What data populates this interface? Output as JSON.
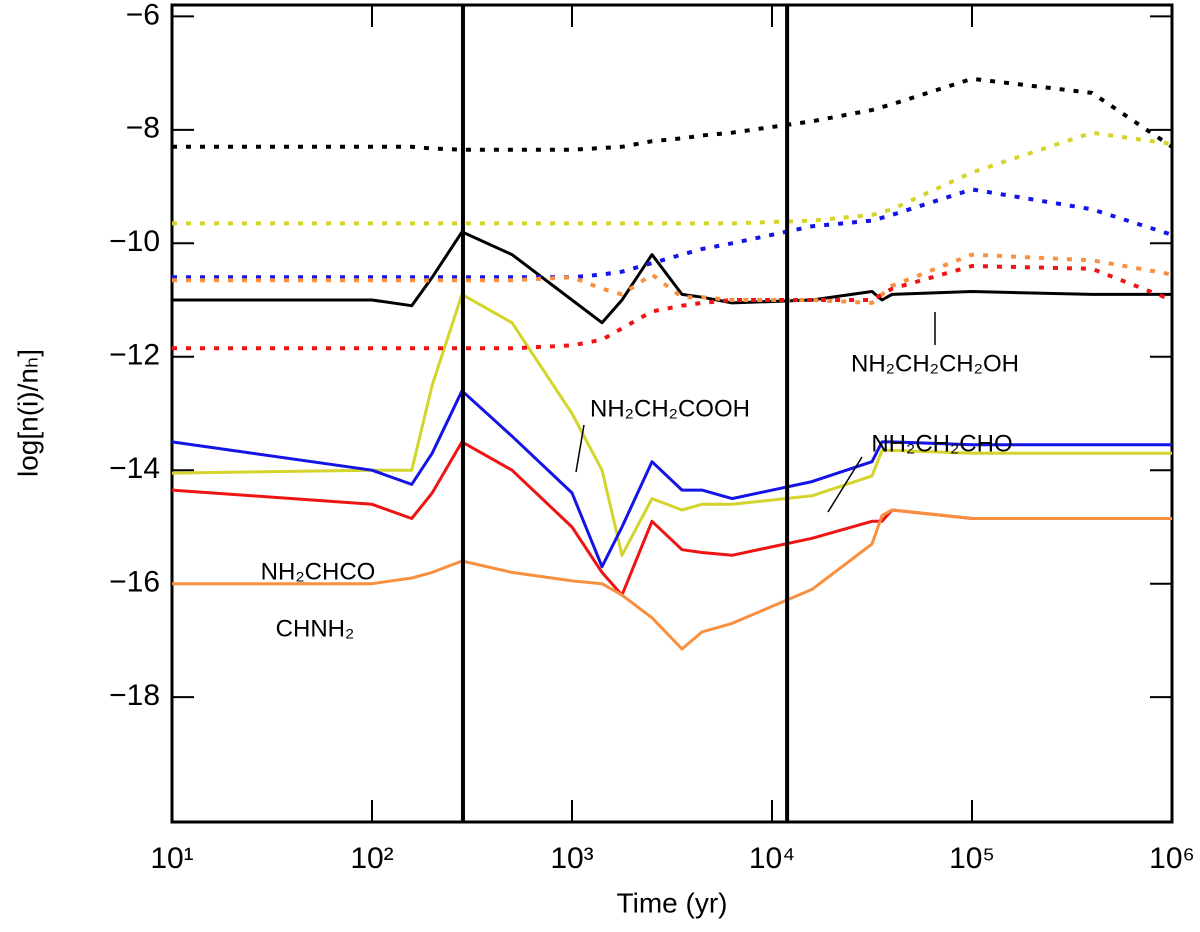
{
  "chart_data": {
    "type": "line",
    "xlabel": "Time (yr)",
    "ylabel": "log[n(i)/nₕ]",
    "xscale": "log",
    "xlim": [
      10,
      1000000
    ],
    "xticks": [
      {
        "value": 10,
        "label": "10¹"
      },
      {
        "value": 100,
        "label": "10²"
      },
      {
        "value": 1000,
        "label": "10³"
      },
      {
        "value": 10000,
        "label": "10⁴"
      },
      {
        "value": 100000,
        "label": "10⁵"
      },
      {
        "value": 1000000,
        "label": "10⁶"
      }
    ],
    "ylim": [
      -20.2,
      -5.8
    ],
    "yticks": [
      {
        "value": -6,
        "label": "−6"
      },
      {
        "value": -8,
        "label": "−8"
      },
      {
        "value": -10,
        "label": "−10"
      },
      {
        "value": -12,
        "label": "−12"
      },
      {
        "value": -14,
        "label": "−14"
      },
      {
        "value": -16,
        "label": "−16"
      },
      {
        "value": -18,
        "label": "−18"
      }
    ],
    "vlines": [
      285,
      11900
    ],
    "x": [
      10,
      100,
      158,
      200,
      282,
      501,
      1000,
      1413,
      1778,
      2512,
      3548,
      4467,
      6310,
      15849,
      31623,
      35481,
      39811,
      100000,
      398107,
      1000000
    ],
    "series": [
      {
        "name": "NH₂CH₂CH₂OH",
        "color": "#000000",
        "style": "solid",
        "values": [
          -11.0,
          -11.0,
          -11.1,
          -10.6,
          -9.8,
          -10.2,
          -11.0,
          -11.4,
          -11.0,
          -10.2,
          -10.9,
          -10.95,
          -11.05,
          -11.0,
          -10.85,
          -11.0,
          -10.9,
          -10.85,
          -10.9,
          -10.9
        ]
      },
      {
        "name": "NH₂CH₂COOH",
        "color": "#d4d42c",
        "style": "solid",
        "values": [
          -14.05,
          -14.0,
          -14.0,
          -12.5,
          -10.9,
          -11.4,
          -13.0,
          -14.0,
          -15.5,
          -14.5,
          -14.7,
          -14.6,
          -14.6,
          -14.45,
          -14.1,
          -13.65,
          -13.65,
          -13.7,
          -13.7,
          -13.7
        ]
      },
      {
        "name": "NH₂CH₂CHO",
        "color": "#1414e6",
        "style": "solid",
        "values": [
          -13.5,
          -14.0,
          -14.25,
          -13.7,
          -12.6,
          -13.4,
          -14.4,
          -15.7,
          -15.0,
          -13.85,
          -14.35,
          -14.35,
          -14.5,
          -14.2,
          -13.85,
          -13.5,
          -13.5,
          -13.55,
          -13.55,
          -13.55
        ]
      },
      {
        "name": "NH₂CHCO",
        "color": "#ee1414",
        "style": "solid",
        "values": [
          -14.35,
          -14.6,
          -14.85,
          -14.4,
          -13.5,
          -14.0,
          -15.0,
          -15.8,
          -16.2,
          -14.9,
          -15.4,
          -15.45,
          -15.5,
          -15.2,
          -14.9,
          -14.9,
          -14.7,
          -14.85,
          -14.85,
          -14.85
        ]
      },
      {
        "name": "CHNH₂",
        "color": "#f89040",
        "style": "solid",
        "values": [
          -16.0,
          -16.0,
          -15.9,
          -15.8,
          -15.6,
          -15.8,
          -15.95,
          -16.0,
          -16.2,
          -16.6,
          -17.15,
          -16.85,
          -16.7,
          -16.1,
          -15.3,
          -14.8,
          -14.7,
          -14.85,
          -14.85,
          -14.85
        ]
      },
      {
        "color": "#000000",
        "style": "dotted",
        "values": [
          -8.3,
          -8.3,
          -8.3,
          -8.33,
          -8.35,
          -8.35,
          -8.35,
          -8.32,
          -8.3,
          -8.2,
          -8.15,
          -8.1,
          -8.05,
          -7.85,
          -7.65,
          -7.6,
          -7.55,
          -7.1,
          -7.35,
          -8.3
        ]
      },
      {
        "color": "#d4d42c",
        "style": "dotted",
        "values": [
          -9.65,
          -9.65,
          -9.65,
          -9.65,
          -9.65,
          -9.65,
          -9.65,
          -9.65,
          -9.65,
          -9.65,
          -9.65,
          -9.65,
          -9.65,
          -9.6,
          -9.5,
          -9.45,
          -9.4,
          -8.75,
          -8.05,
          -8.25
        ]
      },
      {
        "color": "#1414e6",
        "style": "dotted",
        "values": [
          -10.6,
          -10.6,
          -10.6,
          -10.6,
          -10.6,
          -10.6,
          -10.6,
          -10.55,
          -10.5,
          -10.35,
          -10.2,
          -10.1,
          -10.0,
          -9.7,
          -9.6,
          -9.55,
          -9.5,
          -9.05,
          -9.4,
          -9.85
        ]
      },
      {
        "color": "#f89040",
        "style": "dotted",
        "values": [
          -10.65,
          -10.65,
          -10.65,
          -10.65,
          -10.65,
          -10.65,
          -10.6,
          -10.8,
          -10.9,
          -10.55,
          -10.95,
          -10.95,
          -11.0,
          -11.0,
          -11.05,
          -10.9,
          -10.75,
          -10.2,
          -10.3,
          -10.55
        ]
      },
      {
        "color": "#ee1414",
        "style": "dotted",
        "values": [
          -11.85,
          -11.85,
          -11.85,
          -11.85,
          -11.85,
          -11.85,
          -11.8,
          -11.7,
          -11.5,
          -11.2,
          -11.1,
          -11.05,
          -11.0,
          -11.0,
          -11.0,
          -10.9,
          -10.8,
          -10.4,
          -10.45,
          -11.0
        ]
      }
    ],
    "annotations": [
      {
        "text": "NH₂CH₂CH₂OH"
      },
      {
        "text": "NH₂CH₂COOH"
      },
      {
        "text": "NH₂CH₂CHO"
      },
      {
        "text": "NH₂CHCO"
      },
      {
        "text": "CHNH₂"
      }
    ]
  }
}
